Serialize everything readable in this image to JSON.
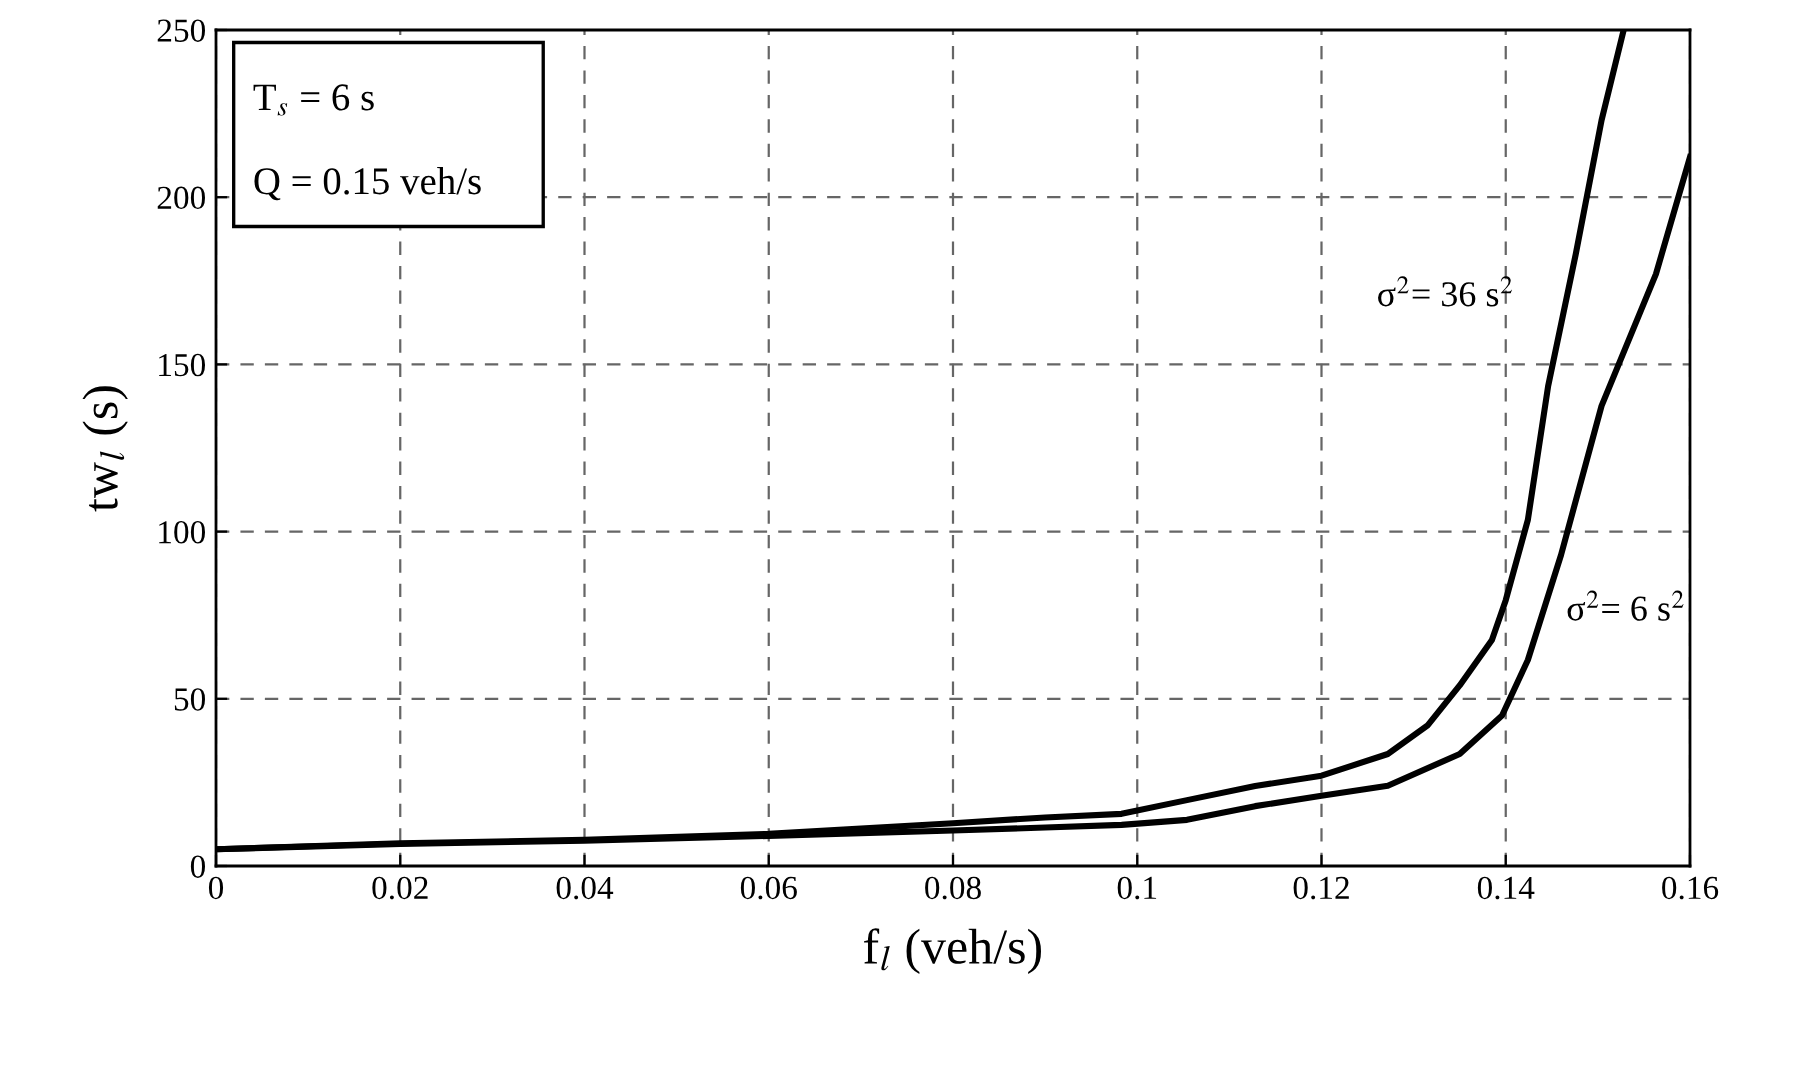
{
  "chart_data": {
    "type": "line",
    "xlabel": "f$_{l}$ (veh/s)",
    "ylabel": "tw$_{l}$ (s)",
    "xlim": [
      0,
      0.16
    ],
    "xticks": [
      0,
      0.02,
      0.04,
      0.06,
      0.08,
      0.1,
      0.12,
      0.14,
      0.16
    ],
    "ylim": [
      0,
      250
    ],
    "yticks": [
      0,
      50,
      100,
      150,
      200,
      250
    ],
    "grid": true,
    "marker": "none",
    "line_style": "solid",
    "series": [
      {
        "color": "#000000",
        "x": [
          0,
          0.02,
          0.04,
          0.06,
          0.08,
          0.09,
          0.0983,
          0.1054,
          0.1128,
          0.12,
          0.1272,
          0.1315,
          0.135,
          0.1385,
          0.14,
          0.1424,
          0.1446,
          0.1476,
          0.1504,
          0.1528
        ],
        "values": [
          5,
          6.8,
          7.8,
          9.6,
          12.8,
          14.5,
          15.6,
          19.7,
          23.9,
          27,
          33.5,
          42,
          54,
          67.6,
          79.5,
          103.5,
          143.5,
          183,
          223,
          250
        ]
      },
      {
        "color": "#000000",
        "x": [
          0,
          0.02,
          0.04,
          0.06,
          0.08,
          0.09,
          0.0983,
          0.1054,
          0.1128,
          0.12,
          0.1272,
          0.135,
          0.1396,
          0.1424,
          0.146,
          0.1504,
          0.1563,
          0.16
        ],
        "values": [
          5,
          6.6,
          7.6,
          9,
          10.6,
          11.5,
          12.3,
          13.8,
          17.9,
          21,
          24,
          33.5,
          45,
          61.6,
          93,
          137.6,
          177,
          212
        ]
      }
    ],
    "annotations": [
      "σ$^{2}$= 36 s$^{2}$",
      "σ$^{2}$= 6 s$^{2}$",
      "T$_{s}$ = 6 s",
      "Q = 0.15 veh/s"
    ]
  }
}
